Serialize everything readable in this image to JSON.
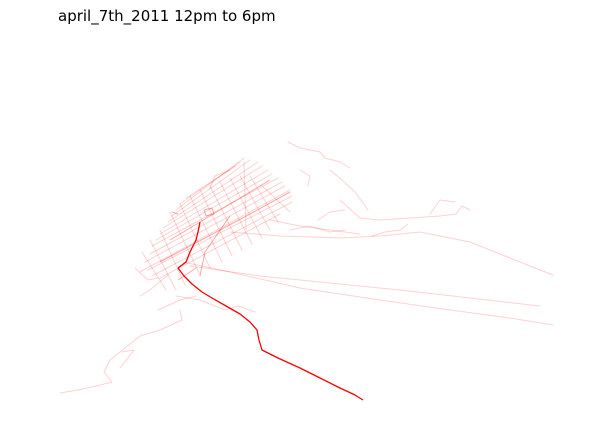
{
  "title": "april_7th_2011 12pm to 6pm",
  "colors": {
    "track": "#ff0000",
    "background": "#ffffff"
  }
}
